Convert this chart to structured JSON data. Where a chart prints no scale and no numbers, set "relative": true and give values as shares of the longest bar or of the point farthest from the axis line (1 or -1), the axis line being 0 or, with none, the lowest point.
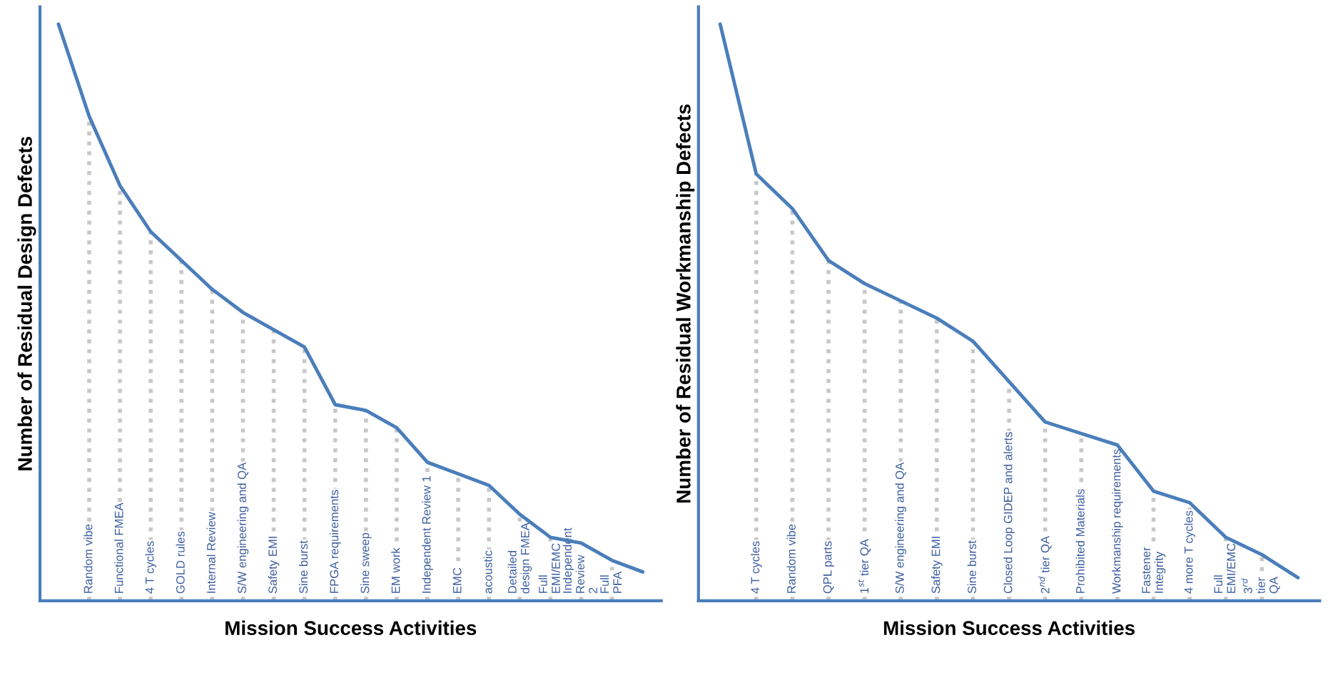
{
  "chart_data": [
    {
      "type": "line",
      "relative": true,
      "xlabel": "Mission Success Activities",
      "ylabel": "Number of Residual Design Defects",
      "categories": [
        null,
        "Random vibe",
        "Functional FMEA",
        "4 T cycles",
        "GOLD rules",
        "Internal Review",
        "S/W engineering and QA",
        "Safety EMI",
        "Sine burst",
        "FPGA requirements",
        "Sine sweep",
        "EM work",
        "Independent Review 1",
        "EMC",
        "acoustic",
        "Detailed design FMEA",
        "Full EMI/EMC",
        "Independent Review 2",
        "Full PFA",
        null
      ],
      "series": [
        {
          "color": "#4a7ebb",
          "values": [
            1,
            0.84,
            0.72,
            0.64,
            0.59,
            0.54,
            0.5,
            0.47,
            0.44,
            0.34,
            0.33,
            0.3,
            0.24,
            0.22,
            0.2,
            0.15,
            0.11,
            0.1,
            0.07,
            0.05
          ]
        }
      ],
      "grid": "x",
      "legend": false,
      "tick_labels": false
    },
    {
      "type": "line",
      "relative": true,
      "xlabel": "Mission Success Activities",
      "ylabel": "Number of Residual Workmanship Defects",
      "categories": [
        null,
        "4 T cycles",
        "Random vibe",
        "QPL parts",
        "1$^{st}$ tier QA",
        "S/W engineering and QA",
        "Safety EMI",
        "Sine burst",
        "Closed Loop GIDEP and alerts",
        "2$^{nd}$ tier QA",
        "Prohibited Materials",
        "Workmanship requirements",
        "Fastener Integrity",
        "4 more T cycles",
        "Full EMI/EMC",
        "3$^{rd}$ tier QA",
        null
      ],
      "series": [
        {
          "color": "#4a7ebb",
          "values": [
            1,
            0.74,
            0.68,
            0.59,
            0.55,
            0.52,
            0.49,
            0.45,
            0.38,
            0.31,
            0.29,
            0.27,
            0.19,
            0.17,
            0.11,
            0.08,
            0.04
          ]
        }
      ],
      "grid": "x",
      "legend": false,
      "tick_labels": false
    }
  ]
}
